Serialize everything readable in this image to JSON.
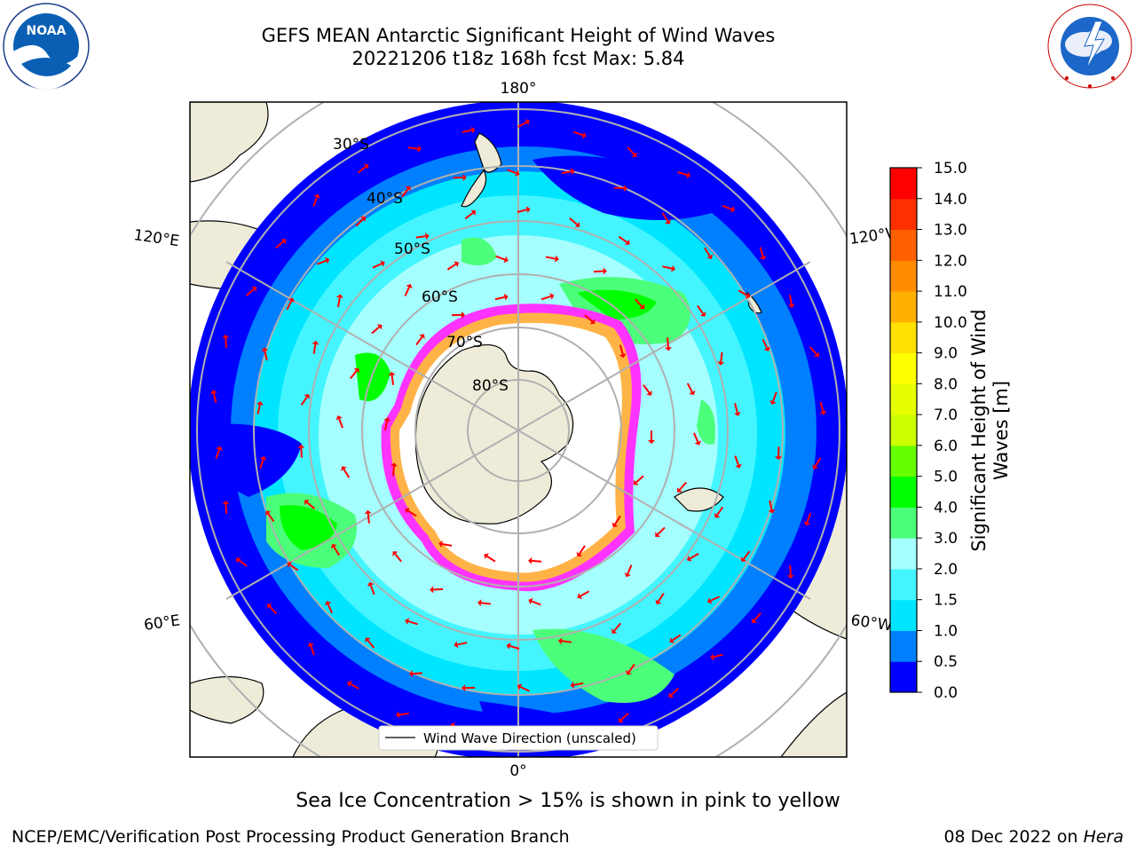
{
  "header": {
    "title_line1": "GEFS MEAN Antarctic Significant Height of Wind Waves",
    "title_line2": "20221206 t18z 168h fcst   Max: 5.84"
  },
  "logos": {
    "left": {
      "icon": "noaa-logo",
      "text": "NOAA"
    },
    "right": {
      "icon": "nws-logo",
      "ring_text": "NATIONAL WEATHER SERVICE"
    }
  },
  "map": {
    "projection": "south-polar-stereographic",
    "lon_labels": {
      "top": "180°",
      "bottom": "0°",
      "left_upper": "120°E",
      "left_lower": "60°E",
      "right_upper": "120°W",
      "right_lower": "60°W"
    },
    "lat_labels": [
      "30°S",
      "40°S",
      "50°S",
      "60°S",
      "70°S",
      "80°S"
    ],
    "legend_label": "Wind Wave Direction (unscaled)",
    "colors": {
      "land": "#eeecd9",
      "ice_low": "#ff33ff",
      "ice_high": "#ffb347",
      "grid": "#b0b0b0"
    }
  },
  "colorbar": {
    "label_line1": "Significant Height of Wind",
    "label_line2": "Waves [m]",
    "ticks": [
      "0.0",
      "0.5",
      "1.0",
      "1.5",
      "2.0",
      "3.0",
      "4.0",
      "5.0",
      "6.0",
      "7.0",
      "8.0",
      "9.0",
      "10.0",
      "11.0",
      "12.0",
      "13.0",
      "14.0",
      "15.0"
    ],
    "colors": [
      "#0000ff",
      "#0080ff",
      "#00e5ff",
      "#44f5ff",
      "#a6ffff",
      "#4cff7a",
      "#00ff00",
      "#66ff00",
      "#ccff00",
      "#e6ff00",
      "#ffff00",
      "#ffe000",
      "#ffb000",
      "#ff8c00",
      "#ff6000",
      "#ff3000",
      "#ff0000"
    ]
  },
  "footer": {
    "note": "Sea Ice Concentration > 15% is shown in pink to yellow",
    "left": "NCEP/EMC/Verification Post Processing Product Generation Branch",
    "right_date": "08 Dec 2022 on ",
    "right_machine": "Hera"
  }
}
